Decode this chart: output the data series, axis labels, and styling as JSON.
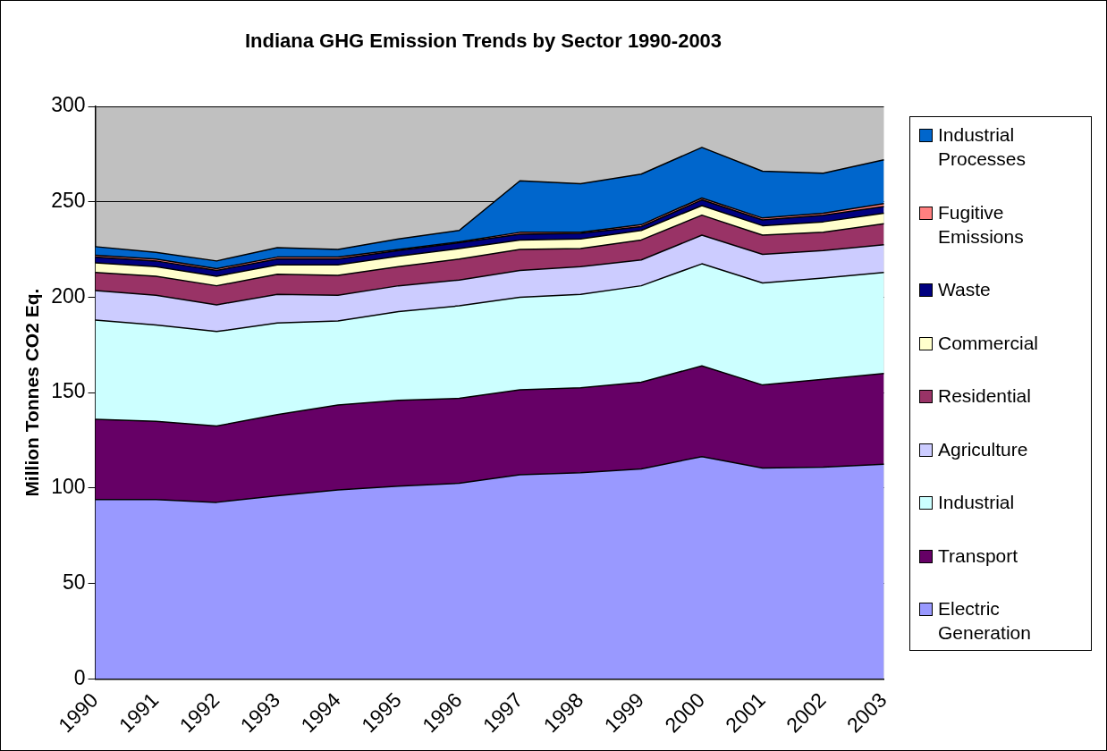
{
  "chart_data": {
    "type": "area",
    "title": "Indiana GHG Emission Trends by Sector 1990-2003",
    "ylabel": "Million Tonnes CO2 Eq.",
    "categories": [
      "1990",
      "1991",
      "1992",
      "1993",
      "1994",
      "1995",
      "1996",
      "1997",
      "1998",
      "1999",
      "2000",
      "2001",
      "2002",
      "2003"
    ],
    "stacked": true,
    "ylim": [
      0,
      300
    ],
    "yticks": [
      0,
      50,
      100,
      150,
      200,
      250,
      300
    ],
    "grid": "y",
    "legend": "right",
    "series": [
      {
        "name": "Electric Generation",
        "color": "#9999ff",
        "values": [
          94,
          94,
          92.5,
          96,
          99,
          101,
          102.5,
          107,
          108,
          110,
          116.5,
          110.5,
          111,
          112.5
        ]
      },
      {
        "name": "Transport",
        "color": "#660066",
        "values": [
          42,
          41,
          40,
          42.5,
          44.5,
          45,
          44.5,
          44.5,
          44.5,
          45.5,
          47.5,
          43.5,
          46,
          47.5
        ]
      },
      {
        "name": "Industrial",
        "color": "#ccffff",
        "values": [
          52,
          50.5,
          49.5,
          48,
          44,
          46.5,
          48.5,
          48.5,
          49,
          50.5,
          53.5,
          53.5,
          53,
          53
        ]
      },
      {
        "name": "Agriculture",
        "color": "#ccccff",
        "values": [
          15.5,
          15.5,
          14,
          15,
          13.5,
          13.5,
          13.5,
          14,
          14.5,
          13.5,
          15,
          15,
          14.5,
          14.5
        ]
      },
      {
        "name": "Residential",
        "color": "#993366",
        "values": [
          9.5,
          10,
          10,
          10.5,
          10.5,
          10,
          11,
          11,
          9.5,
          10.5,
          10.5,
          10,
          9.5,
          11
        ]
      },
      {
        "name": "Commercial",
        "color": "#ffffcc",
        "values": [
          5,
          5,
          5,
          5,
          5.5,
          5.5,
          5.5,
          5,
          5,
          5,
          5,
          5,
          5.5,
          5.5
        ]
      },
      {
        "name": "Waste",
        "color": "#000080",
        "values": [
          3,
          3,
          3,
          3,
          3,
          3,
          3,
          3,
          3,
          2,
          3,
          3,
          3.5,
          3.5
        ]
      },
      {
        "name": "Fugitive Emissions",
        "color": "#ff8080",
        "values": [
          1,
          1,
          1,
          1,
          1,
          0.5,
          0.5,
          1,
          0.5,
          1,
          1,
          1,
          1,
          1.5
        ]
      },
      {
        "name": "Industrial Processes",
        "color": "#0066cc",
        "values": [
          4.5,
          3.5,
          4,
          5,
          4,
          5.5,
          6,
          27,
          25.5,
          26.5,
          26.5,
          24.5,
          21,
          23
        ]
      }
    ]
  }
}
